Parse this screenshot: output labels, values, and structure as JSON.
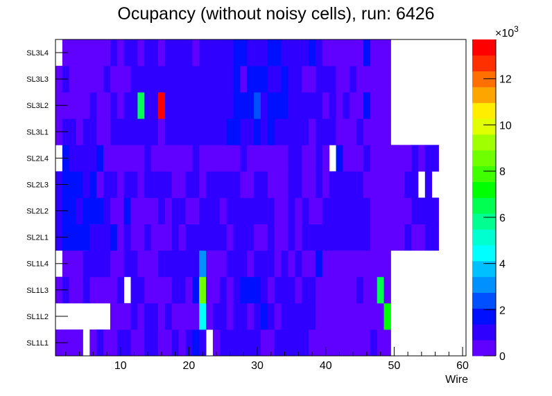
{
  "chart_data": {
    "type": "heatmap",
    "title": "Ocupancy (without noisy cells), run: 6426",
    "xlabel": "Wire",
    "ylabel": "",
    "xlim": [
      0.5,
      60.5
    ],
    "x_ticks": [
      10,
      20,
      30,
      40,
      50,
      60
    ],
    "y_categories": [
      "SL1L1",
      "SL1L2",
      "SL1L3",
      "SL1L4",
      "SL2L1",
      "SL2L2",
      "SL2L3",
      "SL2L4",
      "SL3L1",
      "SL3L2",
      "SL3L3",
      "SL3L4"
    ],
    "z_multiplier_label": "×10",
    "z_multiplier_exponent": "3",
    "zlim": [
      0,
      13.7
    ],
    "z_ticks": [
      0,
      2,
      4,
      6,
      8,
      10,
      12
    ],
    "z_units": "thousands of hits",
    "palette": [
      "#6000ff",
      "#3000ff",
      "#0010ff",
      "#0050ff",
      "#0090ff",
      "#00c0ff",
      "#00ffff",
      "#00ffd0",
      "#00ff90",
      "#00ff50",
      "#00ff00",
      "#40ff00",
      "#70ff00",
      "#a0ff00",
      "#e0ff00",
      "#ffee00",
      "#ffa500",
      "#ff7000",
      "#ff3000",
      "#ff0000"
    ],
    "cell_code_values": {
      "0": 0,
      "P": 0.5,
      "B": 1.0,
      "C": 1.7,
      "D": 2.4,
      "E": 3.1,
      "F": 4.5,
      "g": 6.5,
      "G": 7.2,
      "h": 8.5,
      "r": 13.5
    },
    "cells_by_layer": [
      "PPPP0PBPPBBPPBBPPBPBCB0PBBBBBBPPBBBBBPPPPPPPPPBPP00000000000",
      "00000000PPPBPBBPBPPPPFPBBPBBPBCBPBBBBBPPPPPPPPPPG00000000000",
      "PBPPBPPPPB0BBPPPPBBPChPPBPBCCCBPBBBPBBPPPPPPBPPgP00000000000",
      "0PPPBBBBPPBBPPPBBBBBBEPPPBBBPBBBPBPBPPCPPPPPPPPPP00000000000",
      "BCCCCBBBCPBPPBPPPBPBBBBBBPBBBPPBPPBPBBBBBBBBBBPPPPPBPPBB0000",
      "BCCBCCCBPPCPPPPBPBBPPBBBPBBBBBBBPPBPBPPBBBBBBBPPPPPPBBBB0000",
      "BCCCBCPBBPBBPBBBBPPBBPBBBBBPPBBPPPBBPPBPBBBBBPPPPPPBB0B00000",
      "0CBBBBCPPPPPPBPPPPPPBPPPPPPBPPPPPPBBPPBP0CPPPBPPPPPPBPBB0000",
      "PBBPBBPPBBBBBBBPBBBBBBBBBCCBBCBCBBBBBPBBBPPPBPPPP00000000000",
      "PPPPPBPPBPBBgBBrBBBBBBBBBBCCCDBCCCBBBBBPBPBPPCPPP00000000000",
      "PBPPPPPBPPPBBBBBBBBBBBBBBBCPCCCBBCBBPPBBBPPBPPPPP00000000000",
      "0PPPPPPPBPBBPBBPBBBBPBBBBBCCBBBCCBBBBCBPPPPPPCPPP00000000000"
    ]
  }
}
